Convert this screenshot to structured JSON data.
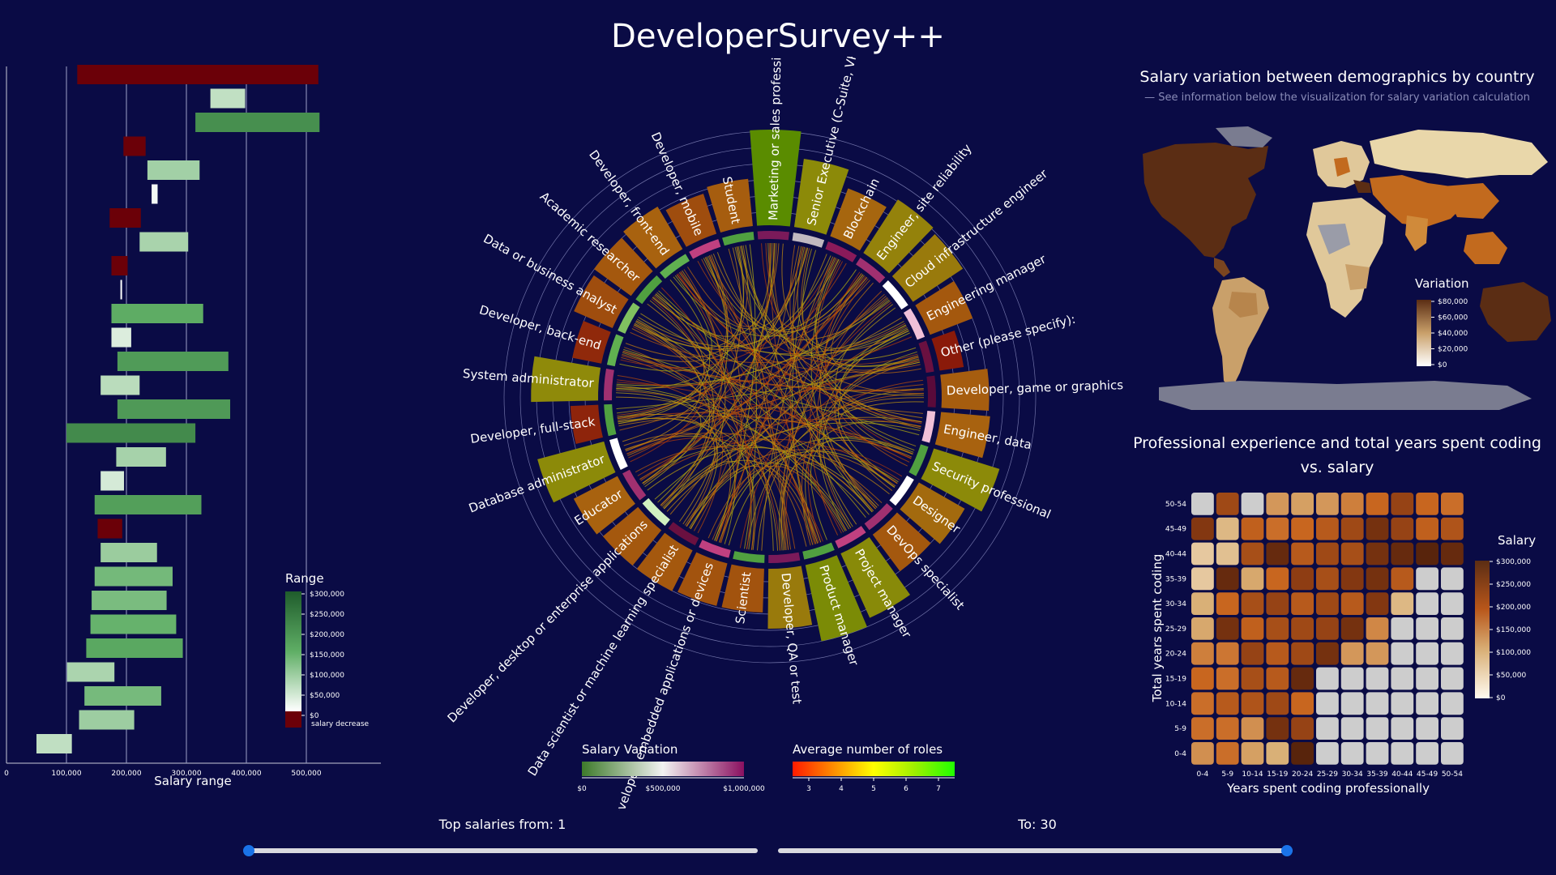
{
  "app": {
    "title": "DeveloperSurvey++"
  },
  "colors": {
    "bg": "#0a0b45",
    "positive_dark": "#1a5a2e",
    "negative": "#6b0008",
    "slider": "#1a73e8"
  },
  "range_chart": {
    "xlabel": "Salary range",
    "ticks": [
      "0",
      "100,000",
      "200,000",
      "300,000",
      "400,000",
      "500,000"
    ],
    "tick_values": [
      0,
      100000,
      200000,
      300000,
      400000,
      500000
    ],
    "legend": {
      "title": "Range",
      "labels": [
        "$300,000",
        "$250,000",
        "$200,000",
        "$150,000",
        "$100,000",
        "$50,000",
        "$0"
      ],
      "decrease_label": "salary decrease"
    },
    "bars": [
      {
        "start": 118000,
        "end": 520000,
        "decrease": true
      },
      {
        "start": 340000,
        "end": 398000,
        "decrease": false
      },
      {
        "start": 315000,
        "end": 522000,
        "decrease": false
      },
      {
        "start": 195000,
        "end": 232000,
        "decrease": true
      },
      {
        "start": 235000,
        "end": 322000,
        "decrease": false
      },
      {
        "start": 242000,
        "end": 252000,
        "decrease": false
      },
      {
        "start": 172000,
        "end": 224000,
        "decrease": true
      },
      {
        "start": 222000,
        "end": 303000,
        "decrease": false
      },
      {
        "start": 175000,
        "end": 202000,
        "decrease": true
      },
      {
        "start": 190000,
        "end": 192000,
        "decrease": false
      },
      {
        "start": 175000,
        "end": 328000,
        "decrease": false
      },
      {
        "start": 175000,
        "end": 208000,
        "decrease": false
      },
      {
        "start": 185000,
        "end": 370000,
        "decrease": false
      },
      {
        "start": 157000,
        "end": 222000,
        "decrease": false
      },
      {
        "start": 185000,
        "end": 373000,
        "decrease": false
      },
      {
        "start": 100000,
        "end": 315000,
        "decrease": false
      },
      {
        "start": 183000,
        "end": 266000,
        "decrease": false
      },
      {
        "start": 157000,
        "end": 196000,
        "decrease": false
      },
      {
        "start": 147000,
        "end": 325000,
        "decrease": false
      },
      {
        "start": 152000,
        "end": 193000,
        "decrease": true
      },
      {
        "start": 157000,
        "end": 251000,
        "decrease": false
      },
      {
        "start": 147000,
        "end": 277000,
        "decrease": false
      },
      {
        "start": 142000,
        "end": 267000,
        "decrease": false
      },
      {
        "start": 140000,
        "end": 283000,
        "decrease": false
      },
      {
        "start": 133000,
        "end": 294000,
        "decrease": false
      },
      {
        "start": 101000,
        "end": 180000,
        "decrease": false
      },
      {
        "start": 130000,
        "end": 258000,
        "decrease": false
      },
      {
        "start": 121000,
        "end": 213000,
        "decrease": false
      },
      {
        "start": 50000,
        "end": 109000,
        "decrease": false
      }
    ]
  },
  "chord": {
    "roles": [
      "Marketing or sales professional",
      "Senior Executive (C-Suite, VP, etc.)",
      "Blockchain",
      "Engineer, site reliability",
      "Cloud infrastructure engineer",
      "Engineering manager",
      "Other (please specify):",
      "Developer, game or graphics",
      "Engineer, data",
      "Security professional",
      "Designer",
      "DevOps specialist",
      "Project manager",
      "Product manager",
      "Developer, QA or test",
      "Scientist",
      "Developer, embedded applications or devices",
      "Data scientist or machine learning specialist",
      "Developer, desktop or enterprise applications",
      "Educator",
      "Database administrator",
      "Developer, full-stack",
      "System administrator",
      "Developer, back-end",
      "Data or business analyst",
      "Academic researcher",
      "Developer, front-end",
      "Developer, mobile",
      "Student"
    ],
    "avg_roles": [
      7,
      5.5,
      4.5,
      5.2,
      5,
      4.2,
      3,
      4.3,
      4.4,
      5.5,
      4.6,
      4.2,
      5.6,
      6,
      5,
      4.1,
      4.1,
      4.2,
      4.2,
      4.4,
      5.5,
      3.2,
      5.4,
      3.3,
      4.0,
      4.2,
      4.4,
      4.0,
      4.3
    ],
    "salary_variation_ring": [
      "#7a1a5a",
      "#c0b8c0",
      "#8a1a5a",
      "#a03070",
      "#ffffff",
      "#f0c0d8",
      "#6a1040",
      "#5a0a3a",
      "#f0c0d8",
      "#50a040",
      "#ffffff",
      "#a03070",
      "#c04080",
      "#50a040",
      "#7a1a5a",
      "#50a040",
      "#c04080",
      "#6a1040",
      "#d0f0c0",
      "#a03070",
      "#ffffff",
      "#50a040",
      "#a03070",
      "#60b050",
      "#80c060",
      "#50a040",
      "#60b050",
      "#c04080",
      "#50a040"
    ],
    "legend_salary": {
      "title": "Salary Variation",
      "labels": [
        "$0",
        "$500,000",
        "$1,000,000"
      ]
    },
    "legend_roles": {
      "title": "Average number of roles",
      "labels": [
        "3",
        "4",
        "5",
        "6",
        "7"
      ]
    }
  },
  "map": {
    "title": "Salary variation between demographics by country",
    "subtitle": "—  See information below the visualization for salary variation calculation",
    "legend": {
      "title": "Variation",
      "labels": [
        "$80,000",
        "$60,000",
        "$40,000",
        "$20,000",
        "$0"
      ]
    }
  },
  "heatmap": {
    "title": "Professional experience and total years spent coding vs. salary",
    "xlabel": "Years spent coding professionally",
    "ylabel": "Total years spent coding",
    "x_categories": [
      "0-4",
      "5-9",
      "10-14",
      "15-19",
      "20-24",
      "25-29",
      "30-34",
      "35-39",
      "40-44",
      "45-49",
      "50-54"
    ],
    "y_categories": [
      "50-54",
      "45-49",
      "40-44",
      "35-39",
      "30-34",
      "25-29",
      "20-24",
      "15-19",
      "10-14",
      "5-9",
      "0-4"
    ],
    "values": [
      [
        null,
        230000,
        null,
        120000,
        110000,
        120000,
        150000,
        180000,
        240000,
        180000,
        170000
      ],
      [
        260000,
        80000,
        190000,
        170000,
        180000,
        200000,
        230000,
        270000,
        240000,
        190000,
        210000
      ],
      [
        60000,
        70000,
        220000,
        280000,
        200000,
        230000,
        220000,
        270000,
        280000,
        290000,
        280000
      ],
      [
        60000,
        280000,
        100000,
        180000,
        250000,
        220000,
        260000,
        270000,
        200000,
        null,
        null
      ],
      [
        90000,
        180000,
        220000,
        240000,
        200000,
        230000,
        200000,
        260000,
        80000,
        null,
        null
      ],
      [
        100000,
        270000,
        190000,
        220000,
        230000,
        240000,
        270000,
        140000,
        null,
        null,
        null
      ],
      [
        150000,
        160000,
        240000,
        200000,
        230000,
        270000,
        120000,
        120000,
        null,
        null,
        null
      ],
      [
        180000,
        170000,
        220000,
        200000,
        280000,
        null,
        null,
        null,
        null,
        null,
        null
      ],
      [
        170000,
        200000,
        210000,
        230000,
        180000,
        null,
        null,
        null,
        null,
        null,
        null
      ],
      [
        170000,
        170000,
        130000,
        270000,
        240000,
        null,
        null,
        null,
        null,
        null,
        null
      ],
      [
        130000,
        170000,
        110000,
        90000,
        290000,
        null,
        null,
        null,
        null,
        null,
        null
      ]
    ],
    "legend": {
      "title": "Salary",
      "labels": [
        "$300,000",
        "$250,000",
        "$200,000",
        "$150,000",
        "$100,000",
        "$50,000",
        "$0"
      ]
    }
  },
  "sliders": {
    "from_label": "Top salaries from: 1",
    "to_label": "To: 30",
    "from_value": 1,
    "to_value": 30
  }
}
